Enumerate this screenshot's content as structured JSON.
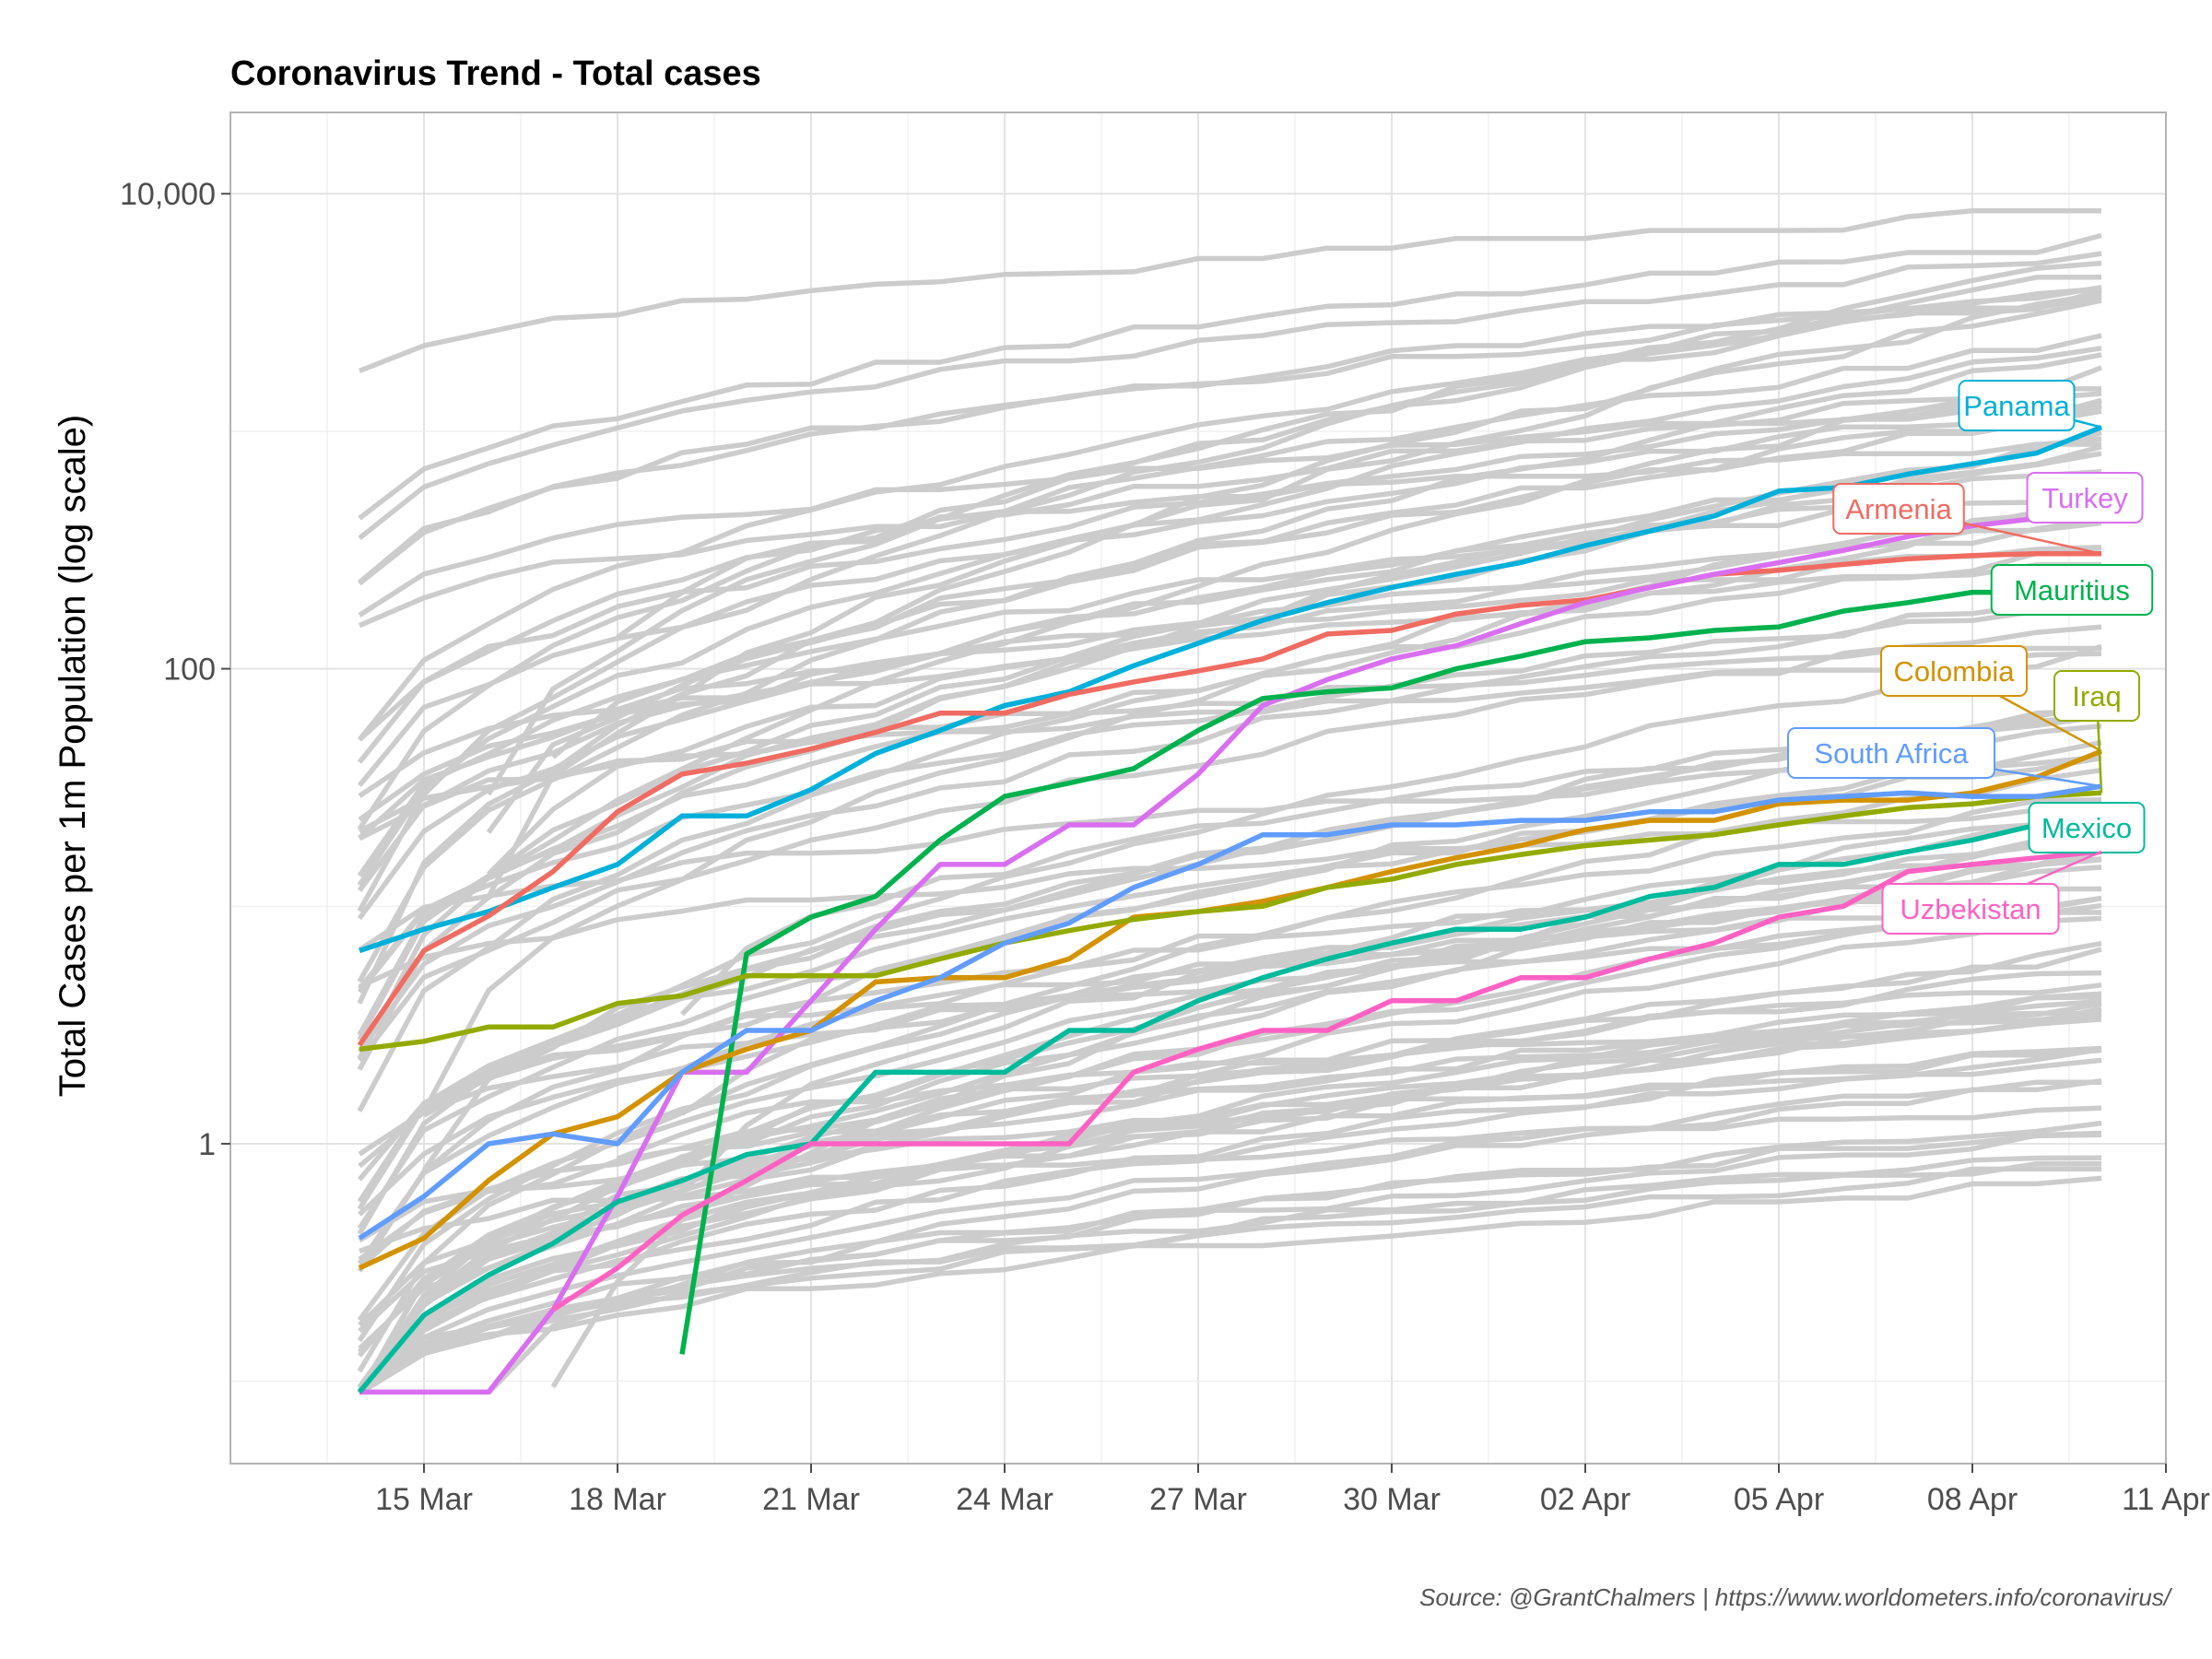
{
  "chart_data": {
    "type": "line",
    "title": "Coronavirus Trend - Total cases",
    "ylabel": "Total Cases per 1m Population (log scale)",
    "xlabel": "",
    "caption": "Source: @GrantChalmers | https://www.worldometers.info/coronavirus/",
    "y_scale": "log10",
    "ylim": [
      0.045,
      22000
    ],
    "xlim": [
      "2020-03-12",
      "2020-04-11"
    ],
    "x_ticks": [
      "15 Mar",
      "18 Mar",
      "21 Mar",
      "24 Mar",
      "27 Mar",
      "30 Mar",
      "02 Apr",
      "05 Apr",
      "08 Apr",
      "11 Apr"
    ],
    "y_ticks": [
      "1",
      "100",
      "10,000"
    ],
    "grid": true,
    "legend": "none (direct labels at line ends)",
    "dates": [
      "2020-03-14",
      "2020-03-15",
      "2020-03-16",
      "2020-03-17",
      "2020-03-18",
      "2020-03-19",
      "2020-03-20",
      "2020-03-21",
      "2020-03-22",
      "2020-03-23",
      "2020-03-24",
      "2020-03-25",
      "2020-03-26",
      "2020-03-27",
      "2020-03-28",
      "2020-03-29",
      "2020-03-30",
      "2020-03-31",
      "2020-04-01",
      "2020-04-02",
      "2020-04-03",
      "2020-04-04",
      "2020-04-05",
      "2020-04-06",
      "2020-04-07",
      "2020-04-08",
      "2020-04-09",
      "2020-04-10"
    ],
    "series": [
      {
        "name": "Panama",
        "color": "#00B0DA",
        "values": [
          6.5,
          8.0,
          9.5,
          12,
          15,
          24,
          24,
          31,
          44,
          55,
          70,
          80,
          103,
          128,
          160,
          190,
          220,
          250,
          280,
          330,
          380,
          440,
          560,
          580,
          660,
          730,
          810,
          1040
        ]
      },
      {
        "name": "Armenia",
        "color": "#F06B61",
        "values": [
          2.6,
          6.5,
          9.1,
          14,
          25,
          36,
          40,
          46,
          54,
          65,
          65,
          78,
          88,
          98,
          110,
          140,
          145,
          170,
          185,
          195,
          220,
          250,
          260,
          275,
          290,
          300,
          305,
          305
        ]
      },
      {
        "name": "Turkey",
        "color": "#D96FF0",
        "values": [
          0.09,
          0.09,
          0.09,
          0.2,
          0.6,
          2.0,
          2.0,
          4.0,
          8.0,
          15,
          15,
          22,
          22,
          36,
          70,
          90,
          110,
          125,
          155,
          190,
          220,
          250,
          280,
          315,
          360,
          400,
          430,
          470
        ]
      },
      {
        "name": "Mauritius",
        "color": "#00B24D",
        "values": null,
        "values_note": "see anchors in script"
      },
      {
        "name": "Colombia",
        "color": "#D39200",
        "values": null
      },
      {
        "name": "Iraq",
        "color": "#93AA00",
        "values": null
      },
      {
        "name": "South Africa",
        "color": "#619CFF",
        "values": null
      },
      {
        "name": "Mexico",
        "color": "#00BA9C",
        "values": null
      },
      {
        "name": "Uzbekistan",
        "color": "#FF61C3",
        "values": null
      }
    ],
    "series_values": {
      "Mauritius": [
        null,
        null,
        null,
        null,
        null,
        0.13,
        6.3,
        9,
        11,
        19,
        29,
        33,
        38,
        55,
        75,
        80,
        83,
        100,
        113,
        130,
        135,
        145,
        150,
        175,
        190,
        210,
        210,
        240
      ],
      "Colombia": [
        0.3,
        0.4,
        0.7,
        1.1,
        1.3,
        2.0,
        2.5,
        3.0,
        4.8,
        5.0,
        5.0,
        6.0,
        9.0,
        9.5,
        10.5,
        12,
        14,
        16,
        18,
        21,
        23,
        23,
        27,
        28,
        28,
        30,
        35,
        45
      ],
      "Iraq": [
        2.5,
        2.7,
        3.1,
        3.1,
        3.9,
        4.2,
        5.1,
        5.1,
        5.1,
        6.0,
        7.0,
        7.9,
        8.8,
        9.5,
        10,
        12,
        13,
        15,
        16.5,
        18,
        19,
        20,
        22,
        24,
        26,
        27,
        29,
        30
      ],
      "South Africa": [
        0.4,
        0.6,
        1.0,
        1.1,
        1.0,
        2.0,
        3.0,
        3.0,
        4.0,
        5.0,
        7.0,
        8.5,
        12,
        15,
        20,
        20,
        22,
        22,
        23,
        23,
        25,
        25,
        28,
        29,
        30,
        29,
        29,
        32
      ],
      "Mexico": [
        0.09,
        0.19,
        0.28,
        0.38,
        0.57,
        0.7,
        0.9,
        1.0,
        2.0,
        2.0,
        2.0,
        3.0,
        3.0,
        4.0,
        5.0,
        6.0,
        7.0,
        8.0,
        8.0,
        9.0,
        11,
        12,
        15,
        15,
        17,
        19,
        22,
        27
      ],
      "Uzbekistan": [
        null,
        null,
        null,
        0.2,
        0.3,
        0.5,
        0.7,
        1.0,
        1.0,
        1.0,
        1.0,
        1.0,
        2.0,
        2.5,
        3.0,
        3.0,
        4.0,
        4.0,
        5.0,
        5.0,
        6.0,
        7.0,
        9.0,
        10,
        14,
        15,
        16,
        17
      ]
    }
  }
}
